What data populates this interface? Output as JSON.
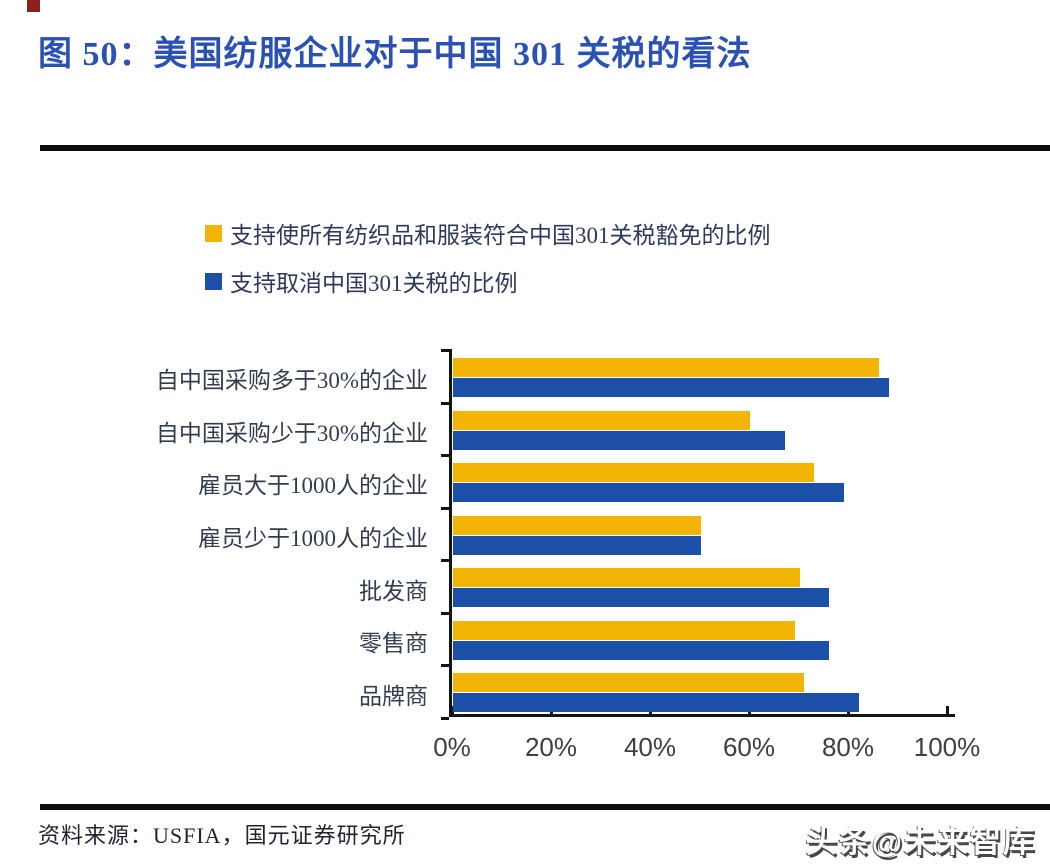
{
  "figure": {
    "title": "图 50：美国纺服企业对于中国 301 关税的看法"
  },
  "legend": [
    {
      "label": "支持使所有纺织品和服装符合中国301关税豁免的比例",
      "color": "#f2b505"
    },
    {
      "label": "支持取消中国301关税的比例",
      "color": "#1c50a8"
    }
  ],
  "chart_data": {
    "type": "bar",
    "orientation": "horizontal",
    "title": "美国纺服企业对于中国301关税的看法",
    "categories": [
      "自中国采购多于30%的企业",
      "自中国采购少于30%的企业",
      "雇员大于1000人的企业",
      "雇员少于1000人的企业",
      "批发商",
      "零售商",
      "品牌商"
    ],
    "series": [
      {
        "name": "支持使所有纺织品和服装符合中国301关税豁免的比例",
        "color": "#f2b505",
        "values": [
          86,
          60,
          73,
          50,
          70,
          69,
          71
        ]
      },
      {
        "name": "支持取消中国301关税的比例",
        "color": "#1c50a8",
        "values": [
          88,
          67,
          79,
          50,
          76,
          76,
          82
        ]
      }
    ],
    "value_unit": "%",
    "x_ticks": [
      "0%",
      "20%",
      "40%",
      "60%",
      "80%",
      "100%"
    ],
    "xlim": [
      0,
      100
    ],
    "grid": false,
    "legend_position": "top"
  },
  "source": {
    "label": "资料来源：USFIA，国元证券研究所"
  },
  "watermark": {
    "text": "头条@未来智库"
  },
  "colors": {
    "title_blue": "#2b51b5",
    "bar_yellow": "#f2b505",
    "bar_blue": "#1c50a8",
    "divider_black": "#0d0d0d"
  }
}
